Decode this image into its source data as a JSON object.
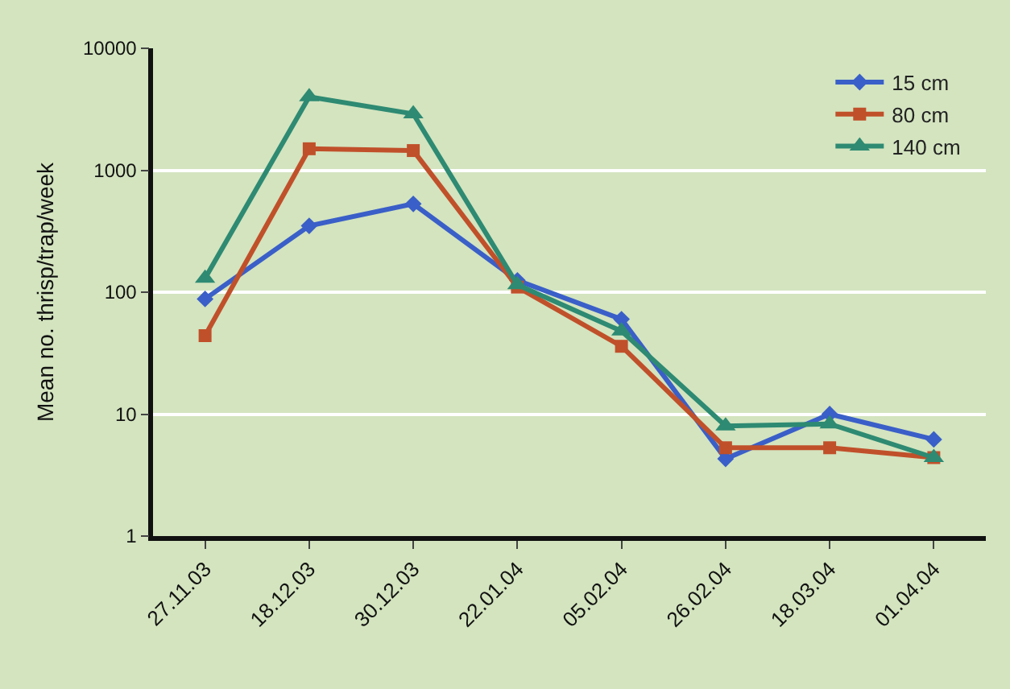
{
  "chart_data": {
    "type": "line",
    "ylabel": "Mean no. thrisp/trap/week",
    "categories": [
      "27.11.03",
      "18.12.03",
      "30.12.03",
      "22.01.04",
      "05.02.04",
      "26.02.04",
      "18.03.04",
      "01.04.04"
    ],
    "series": [
      {
        "name": "15 cm",
        "color": "#3a5fc8",
        "marker": "diamond",
        "values": [
          88,
          350,
          530,
          125,
          60,
          4.3,
          10,
          6.2
        ]
      },
      {
        "name": "80 cm",
        "color": "#c0502a",
        "marker": "square",
        "values": [
          44,
          1500,
          1450,
          110,
          36,
          5.3,
          5.3,
          4.4
        ]
      },
      {
        "name": "140 cm",
        "color": "#2e8a72",
        "marker": "triangle",
        "values": [
          130,
          4000,
          2900,
          115,
          48,
          8,
          8.3,
          4.4
        ]
      }
    ],
    "log": true,
    "ylim": [
      1,
      10000
    ],
    "yticks": [
      1,
      10,
      100,
      1000,
      10000
    ],
    "grid": "y",
    "legend": "top right"
  }
}
